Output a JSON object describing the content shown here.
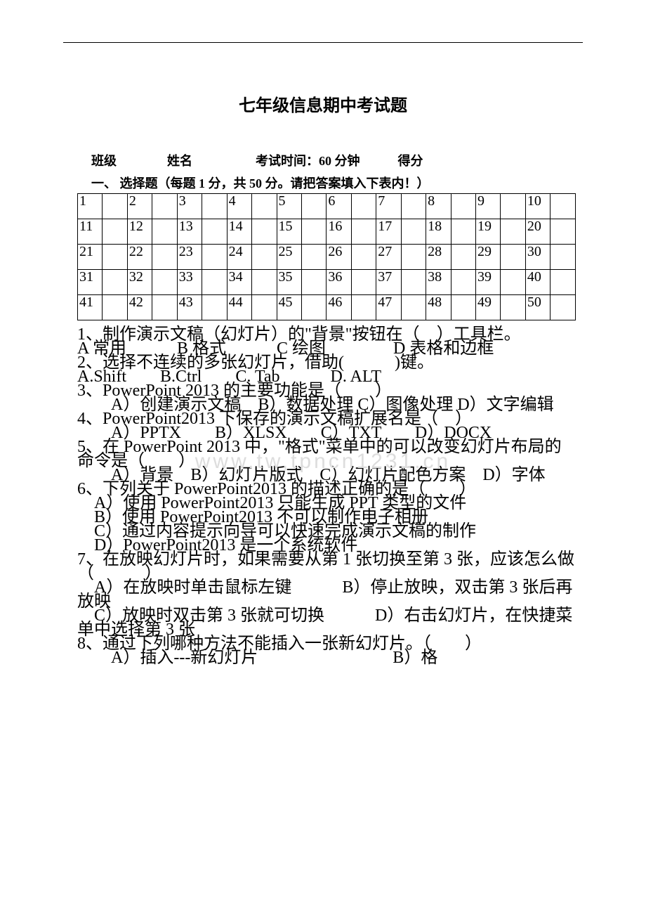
{
  "page": {
    "title": "七年级信息期中考试题",
    "header": "班级　　　　姓名　　　　　考试时间：60 分钟　　　得分",
    "sectionLabel": "一、  选择题（每题 1 分，共 50 分。请把答案填入下表内！）",
    "watermark": "www.tw,tpncn1231.cn"
  },
  "answerGrid": {
    "rows": [
      [
        "1",
        "2",
        "3",
        "4",
        "5",
        "6",
        "7",
        "8",
        "9",
        "10"
      ],
      [
        "11",
        "12",
        "13",
        "14",
        "15",
        "16",
        "17",
        "18",
        "19",
        "20"
      ],
      [
        "21",
        "22",
        "23",
        "24",
        "25",
        "26",
        "27",
        "28",
        "29",
        "30"
      ],
      [
        "31",
        "32",
        "33",
        "34",
        "35",
        "36",
        "37",
        "38",
        "39",
        "40"
      ],
      [
        "41",
        "42",
        "43",
        "44",
        "45",
        "46",
        "47",
        "48",
        "49",
        "50"
      ]
    ]
  },
  "questions": {
    "q1": "1、制作演示文稿（幻灯片）的\"背景\"按钮在（　）工具栏。",
    "q1opts": "A 常用　　　B 格式　　　C 绘图　　　　D 表格和边框",
    "q2": "2、选择不连续的多张幻灯片，借助(　　　)键。",
    "q2opts": "A.Shift　　B.Ctrl　　C. Tab　　　D. ALT",
    "q3": "3、PowerPoint 2013 的主要功能是（　　）",
    "q3opts": "　　A）创建演示文稿　B）数据处理 C）图像处理 D）文字编辑",
    "q4": "4、PowerPoint2013 下保存的演示文稿扩展名是（　）",
    "q4opts": "　　A）PPTX　　B）XLSX　　C）TXT　　D）DOCX",
    "q5": "5、在 PowerPoint 2013 中，\"格式\"菜单中的可以改变幻灯片布局的命令是（　　）",
    "q5opts": "　　A）背景　B）幻灯片版式　C）幻灯片配色方案　D）字体",
    "q6": "6、下列关于 PowerPoint2013 的描述正确的是（　　）",
    "q6a": "　A）使用 PowerPoint2013 只能生成 PPT 类型的文件",
    "q6b": "　B）使用 PowerPoint2013 不可以制作电子相册",
    "q6c": "　C）通过内容提示向导可以快速完成演示文稿的制作",
    "q6d": "　D）PowerPoint2013 是一个系统软件",
    "q7": "7、在放映幻灯片时，如果需要从第 1 张切换至第 3 张，应该怎么做（　　　）",
    "q7ab": "　A）在放映时单击鼠标左键　　　B）停止放映，双击第 3 张后再放映",
    "q7cd": "　C）放映时双击第 3 张就可切换　　　D）右击幻灯片，在快捷菜单中选择第 3 张",
    "q8": "8、通过下列哪种方法不能插入一张新幻灯片。（　　）",
    "q8opts": "　　A）插入---新幻灯片　　　　　　　　B）格"
  },
  "colors": {
    "background": "#ffffff",
    "text": "#000000",
    "watermark": "#dddddd",
    "border": "#000000"
  }
}
